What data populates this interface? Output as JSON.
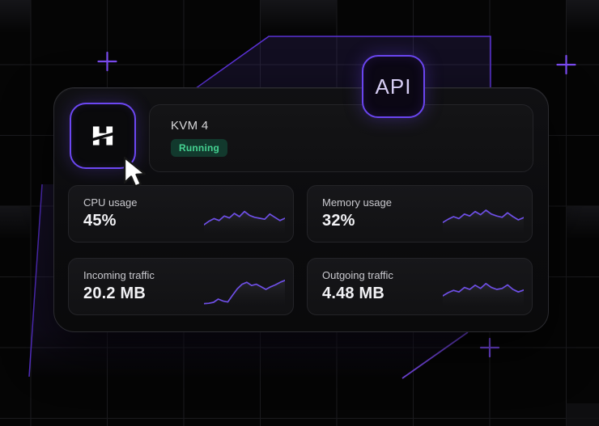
{
  "theme": {
    "background": "#050505",
    "grid_line": "#1b1b1e",
    "accent_purple": "#6c47f2",
    "plus_marker": "#7b4bf0",
    "polygon_stroke": "#5b32d6",
    "sparkline_stroke": "#6e4fe6",
    "status_green": "#45d392",
    "status_green_bg": "#12392d"
  },
  "api_badge": {
    "label": "API"
  },
  "logo": {
    "icon": "hostinger-h-logo"
  },
  "server_card": {
    "name": "KVM 4",
    "status": "Running"
  },
  "metrics": [
    {
      "label": "CPU usage",
      "value": "45%",
      "sparkline": [
        0.25,
        0.36,
        0.44,
        0.38,
        0.52,
        0.46,
        0.6,
        0.5,
        0.66,
        0.54,
        0.48,
        0.45,
        0.42,
        0.58,
        0.48,
        0.38,
        0.45
      ]
    },
    {
      "label": "Memory usage",
      "value": "32%",
      "sparkline": [
        0.32,
        0.42,
        0.5,
        0.44,
        0.58,
        0.52,
        0.66,
        0.56,
        0.7,
        0.58,
        0.52,
        0.48,
        0.62,
        0.5,
        0.4,
        0.47
      ]
    },
    {
      "label": "Incoming traffic",
      "value": "20.2 MB",
      "sparkline": [
        0.06,
        0.07,
        0.1,
        0.2,
        0.14,
        0.11,
        0.32,
        0.52,
        0.66,
        0.72,
        0.62,
        0.66,
        0.58,
        0.5,
        0.58,
        0.64,
        0.72,
        0.78
      ]
    },
    {
      "label": "Outgoing traffic",
      "value": "4.48 MB",
      "sparkline": [
        0.3,
        0.4,
        0.47,
        0.42,
        0.56,
        0.5,
        0.63,
        0.53,
        0.68,
        0.56,
        0.5,
        0.53,
        0.64,
        0.5,
        0.42,
        0.48
      ]
    }
  ]
}
